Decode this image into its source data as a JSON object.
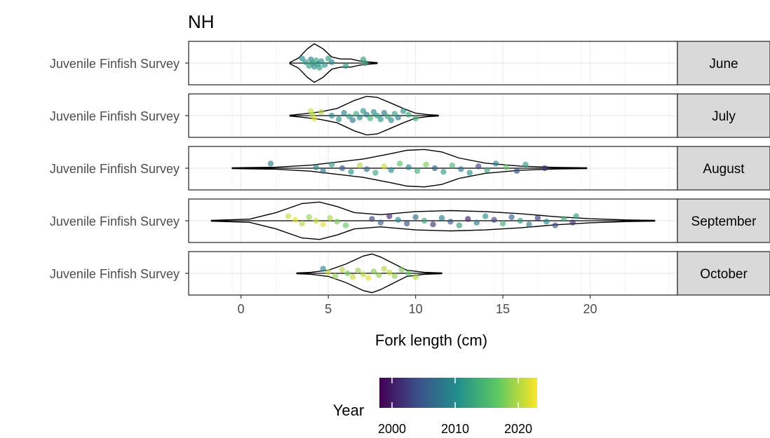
{
  "chart_data": {
    "type": "violin-jitter",
    "title": "NH",
    "xlabel": "Fork length (cm)",
    "ylabel": "",
    "xlim": [
      -3,
      25
    ],
    "x_ticks": [
      0,
      5,
      10,
      15,
      20
    ],
    "x_tick_labels": [
      "0",
      "5",
      "10",
      "15",
      "20"
    ],
    "grid": true,
    "facet_by": "month",
    "category_label": "Juvenile Finfish Survey",
    "facets": [
      {
        "month": "June",
        "violin": {
          "min": 2.8,
          "max": 7.8,
          "profile": [
            [
              2.8,
              0.03
            ],
            [
              3.3,
              0.25
            ],
            [
              3.8,
              0.7
            ],
            [
              4.2,
              0.95
            ],
            [
              4.7,
              0.7
            ],
            [
              5.2,
              0.3
            ],
            [
              5.7,
              0.2
            ],
            [
              6.3,
              0.2
            ],
            [
              6.8,
              0.1
            ],
            [
              7.3,
              0.06
            ],
            [
              7.8,
              0.02
            ]
          ]
        },
        "points": [
          {
            "x": 3.5,
            "year": 2010
          },
          {
            "x": 3.7,
            "year": 2011
          },
          {
            "x": 3.9,
            "year": 2012
          },
          {
            "x": 4.0,
            "year": 2009
          },
          {
            "x": 4.1,
            "year": 2012
          },
          {
            "x": 4.2,
            "year": 2010
          },
          {
            "x": 4.3,
            "year": 2013
          },
          {
            "x": 4.4,
            "year": 2011
          },
          {
            "x": 4.5,
            "year": 2012
          },
          {
            "x": 4.6,
            "year": 2010
          },
          {
            "x": 4.8,
            "year": 2011
          },
          {
            "x": 5.0,
            "year": 2012
          },
          {
            "x": 5.2,
            "year": 2010
          },
          {
            "x": 6.0,
            "year": 2011
          },
          {
            "x": 7.0,
            "year": 2012
          },
          {
            "x": 7.1,
            "year": 2013
          }
        ]
      },
      {
        "month": "July",
        "violin": {
          "min": 2.8,
          "max": 11.3,
          "profile": [
            [
              2.8,
              0.02
            ],
            [
              3.5,
              0.08
            ],
            [
              4.5,
              0.18
            ],
            [
              5.5,
              0.35
            ],
            [
              6.5,
              0.75
            ],
            [
              7.2,
              0.95
            ],
            [
              7.8,
              0.9
            ],
            [
              8.5,
              0.65
            ],
            [
              9.3,
              0.35
            ],
            [
              10.0,
              0.12
            ],
            [
              10.7,
              0.05
            ],
            [
              11.3,
              0.02
            ]
          ]
        },
        "points": [
          {
            "x": 4.0,
            "year": 2021
          },
          {
            "x": 4.1,
            "year": 2020
          },
          {
            "x": 4.2,
            "year": 2022
          },
          {
            "x": 4.6,
            "year": 2020
          },
          {
            "x": 5.2,
            "year": 2010
          },
          {
            "x": 5.6,
            "year": 2011
          },
          {
            "x": 5.9,
            "year": 2009
          },
          {
            "x": 6.2,
            "year": 2012
          },
          {
            "x": 6.4,
            "year": 2008
          },
          {
            "x": 6.6,
            "year": 2013
          },
          {
            "x": 6.8,
            "year": 2010
          },
          {
            "x": 7.0,
            "year": 2011
          },
          {
            "x": 7.2,
            "year": 2009
          },
          {
            "x": 7.4,
            "year": 2014
          },
          {
            "x": 7.6,
            "year": 2010
          },
          {
            "x": 7.8,
            "year": 2012
          },
          {
            "x": 8.0,
            "year": 2011
          },
          {
            "x": 8.2,
            "year": 2008
          },
          {
            "x": 8.4,
            "year": 2013
          },
          {
            "x": 8.6,
            "year": 2010
          },
          {
            "x": 8.8,
            "year": 2012
          },
          {
            "x": 9.0,
            "year": 2009
          },
          {
            "x": 9.3,
            "year": 2011
          },
          {
            "x": 9.6,
            "year": 2013
          },
          {
            "x": 10.0,
            "year": 2014
          }
        ]
      },
      {
        "month": "August",
        "violin": {
          "min": -0.5,
          "max": 19.8,
          "profile": [
            [
              -0.5,
              0.02
            ],
            [
              2.0,
              0.05
            ],
            [
              4.0,
              0.15
            ],
            [
              5.5,
              0.3
            ],
            [
              7.0,
              0.45
            ],
            [
              8.5,
              0.7
            ],
            [
              9.5,
              0.88
            ],
            [
              10.5,
              0.92
            ],
            [
              11.5,
              0.8
            ],
            [
              12.5,
              0.5
            ],
            [
              14.0,
              0.25
            ],
            [
              16.0,
              0.1
            ],
            [
              18.0,
              0.04
            ],
            [
              19.8,
              0.02
            ]
          ]
        },
        "points": [
          {
            "x": 1.7,
            "year": 2009
          },
          {
            "x": 4.3,
            "year": 2010
          },
          {
            "x": 4.7,
            "year": 2008
          },
          {
            "x": 5.2,
            "year": 2012
          },
          {
            "x": 5.8,
            "year": 2005
          },
          {
            "x": 6.3,
            "year": 2011
          },
          {
            "x": 6.8,
            "year": 2020
          },
          {
            "x": 7.2,
            "year": 2007
          },
          {
            "x": 7.7,
            "year": 2013
          },
          {
            "x": 8.2,
            "year": 2021
          },
          {
            "x": 8.6,
            "year": 2010
          },
          {
            "x": 9.1,
            "year": 2016
          },
          {
            "x": 9.6,
            "year": 2009
          },
          {
            "x": 10.1,
            "year": 2014
          },
          {
            "x": 10.6,
            "year": 2018
          },
          {
            "x": 11.1,
            "year": 2006
          },
          {
            "x": 11.6,
            "year": 2012
          },
          {
            "x": 12.1,
            "year": 2015
          },
          {
            "x": 12.6,
            "year": 2008
          },
          {
            "x": 13.1,
            "year": 2011
          },
          {
            "x": 13.6,
            "year": 2003
          },
          {
            "x": 14.1,
            "year": 2013
          },
          {
            "x": 14.6,
            "year": 2009
          },
          {
            "x": 15.2,
            "year": 2017
          },
          {
            "x": 15.8,
            "year": 2004
          },
          {
            "x": 16.3,
            "year": 2012
          },
          {
            "x": 17.4,
            "year": 2002
          }
        ]
      },
      {
        "month": "September",
        "violin": {
          "min": -1.7,
          "max": 23.7,
          "profile": [
            [
              -1.7,
              0.02
            ],
            [
              0.5,
              0.08
            ],
            [
              2.0,
              0.4
            ],
            [
              3.5,
              0.85
            ],
            [
              4.5,
              0.92
            ],
            [
              5.5,
              0.7
            ],
            [
              6.5,
              0.4
            ],
            [
              8.0,
              0.3
            ],
            [
              10.0,
              0.45
            ],
            [
              12.0,
              0.5
            ],
            [
              14.0,
              0.45
            ],
            [
              16.0,
              0.35
            ],
            [
              18.0,
              0.2
            ],
            [
              20.0,
              0.1
            ],
            [
              22.0,
              0.04
            ],
            [
              23.7,
              0.02
            ]
          ]
        },
        "points": [
          {
            "x": 2.7,
            "year": 2021
          },
          {
            "x": 3.1,
            "year": 2022
          },
          {
            "x": 3.5,
            "year": 2020
          },
          {
            "x": 3.9,
            "year": 2019
          },
          {
            "x": 4.3,
            "year": 2021
          },
          {
            "x": 4.7,
            "year": 2022
          },
          {
            "x": 5.1,
            "year": 2020
          },
          {
            "x": 5.5,
            "year": 2018
          },
          {
            "x": 6.0,
            "year": 2017
          },
          {
            "x": 7.5,
            "year": 2003
          },
          {
            "x": 8.0,
            "year": 2006
          },
          {
            "x": 8.5,
            "year": 2001
          },
          {
            "x": 9.0,
            "year": 2010
          },
          {
            "x": 9.5,
            "year": 2004
          },
          {
            "x": 10.0,
            "year": 2007
          },
          {
            "x": 10.5,
            "year": 2013
          },
          {
            "x": 11.0,
            "year": 2002
          },
          {
            "x": 11.5,
            "year": 2009
          },
          {
            "x": 12.0,
            "year": 2005
          },
          {
            "x": 12.5,
            "year": 2012
          },
          {
            "x": 13.0,
            "year": 2000
          },
          {
            "x": 13.5,
            "year": 2008
          },
          {
            "x": 14.0,
            "year": 2011
          },
          {
            "x": 14.5,
            "year": 2003
          },
          {
            "x": 15.0,
            "year": 2014
          },
          {
            "x": 15.5,
            "year": 2006
          },
          {
            "x": 16.0,
            "year": 2012
          },
          {
            "x": 16.5,
            "year": 2009
          },
          {
            "x": 17.0,
            "year": 2002
          },
          {
            "x": 17.5,
            "year": 2010
          },
          {
            "x": 18.0,
            "year": 2004
          },
          {
            "x": 18.5,
            "year": 2013
          },
          {
            "x": 19.0,
            "year": 2001
          },
          {
            "x": 19.2,
            "year": 2012
          }
        ]
      },
      {
        "month": "October",
        "violin": {
          "min": 3.2,
          "max": 11.5,
          "profile": [
            [
              3.2,
              0.02
            ],
            [
              4.0,
              0.05
            ],
            [
              5.0,
              0.15
            ],
            [
              6.0,
              0.45
            ],
            [
              7.0,
              0.85
            ],
            [
              7.5,
              0.95
            ],
            [
              8.0,
              0.8
            ],
            [
              8.8,
              0.45
            ],
            [
              9.5,
              0.15
            ],
            [
              10.5,
              0.05
            ],
            [
              11.5,
              0.02
            ]
          ]
        },
        "points": [
          {
            "x": 4.7,
            "year": 2010
          },
          {
            "x": 5.0,
            "year": 2021
          },
          {
            "x": 5.4,
            "year": 2019
          },
          {
            "x": 5.8,
            "year": 2020
          },
          {
            "x": 6.1,
            "year": 2018
          },
          {
            "x": 6.4,
            "year": 2021
          },
          {
            "x": 6.7,
            "year": 2019
          },
          {
            "x": 7.0,
            "year": 2020
          },
          {
            "x": 7.3,
            "year": 2022
          },
          {
            "x": 7.6,
            "year": 2018
          },
          {
            "x": 7.9,
            "year": 2019
          },
          {
            "x": 8.2,
            "year": 2020
          },
          {
            "x": 8.5,
            "year": 2021
          },
          {
            "x": 8.8,
            "year": 2019
          },
          {
            "x": 9.2,
            "year": 2018
          },
          {
            "x": 9.6,
            "year": 2017
          },
          {
            "x": 10.0,
            "year": 2020
          }
        ]
      }
    ],
    "legend": {
      "title": "Year",
      "placement": "bottom",
      "type": "colorbar",
      "range": [
        1998,
        2023
      ],
      "breaks": [
        2000,
        2010,
        2020
      ],
      "break_labels": [
        "2000",
        "2010",
        "2020"
      ],
      "palette": [
        "#440154",
        "#3b528b",
        "#21908c",
        "#5dc863",
        "#fde725"
      ]
    },
    "colors": {
      "panel_border": "#333333",
      "grid_major": "#ebebeb",
      "grid_minor": "#f5f5f5",
      "strip_fill": "#d9d9d9",
      "violin_line": "#000000",
      "point_opacity": 0.65
    }
  }
}
